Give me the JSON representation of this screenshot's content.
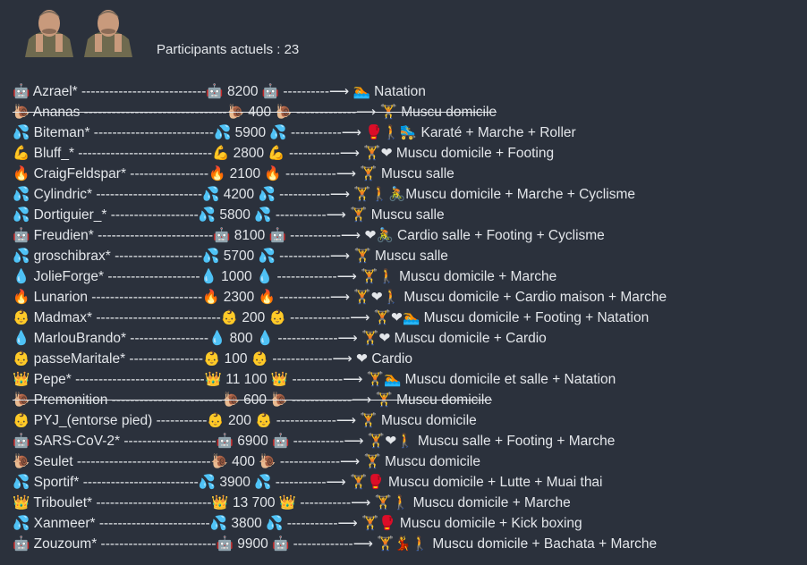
{
  "header": {
    "avatar_count": 2,
    "participants_label": "Participants actuels : 23"
  },
  "rows": [
    {
      "text": "🤖 Azrael* ---------------------------🤖 8200 🤖 ----------⟶ 🏊 Natation",
      "struck": false
    },
    {
      "text": "🐌 Ananas -------------------------------🐌 400 🐌 -------------⟶ 🏋 Muscu domicile",
      "struck": true
    },
    {
      "text": "💦 Biteman* --------------------------💦 5900 💦 -----------⟶ 🥊🚶🛼 Karaté + Marche + Roller",
      "struck": false
    },
    {
      "text": "💪 Bluff_* -----------------------------💪 2800 💪 -----------⟶ 🏋❤ Muscu domicile + Footing",
      "struck": false
    },
    {
      "text": "🔥 CraigFeldspar* -----------------🔥 2100 🔥 -----------⟶ 🏋 Muscu salle",
      "struck": false
    },
    {
      "text": "💦 Cylindric* -----------------------💦 4200 💦 -----------⟶ 🏋🚶🚴Muscu domicile + Marche + Cyclisme",
      "struck": false
    },
    {
      "text": "💦 Dortiguier_* -------------------💦 5800 💦 -----------⟶ 🏋 Muscu salle",
      "struck": false
    },
    {
      "text": "🤖 Freudien* -------------------------🤖 8100 🤖 -----------⟶ ❤🚴 Cardio salle + Footing + Cyclisme",
      "struck": false
    },
    {
      "text": "💦 groschibrax* -------------------💦 5700 💦 -----------⟶ 🏋 Muscu salle",
      "struck": false
    },
    {
      "text": "💧 JolieForge* --------------------💧 1000 💧 -------------⟶ 🏋🚶 Muscu domicile + Marche",
      "struck": false
    },
    {
      "text": "🔥 Lunarion ------------------------🔥 2300 🔥 -----------⟶ 🏋❤🚶 Muscu domicile + Cardio maison + Marche",
      "struck": false
    },
    {
      "text": "👶 Madmax* ---------------------------👶 200 👶 -------------⟶ 🏋❤🏊 Muscu domicile + Footing + Natation",
      "struck": false
    },
    {
      "text": "💧 MarlouBrando* -----------------💧 800 💧 -------------⟶ 🏋❤ Muscu domicile + Cardio",
      "struck": false
    },
    {
      "text": "👶 passeMaritale* ----------------👶 100 👶 -------------⟶ ❤ Cardio",
      "struck": false
    },
    {
      "text": "👑 Pepe* ----------------------------👑 11 100 👑 -----------⟶ 🏋🏊 Muscu domicile et salle + Natation",
      "struck": false
    },
    {
      "text": "🐌 Premonition ------------------------🐌 600 🐌 -------------⟶ 🏋 Muscu domicile",
      "struck": true
    },
    {
      "text": "👶 PYJ_(entorse pied) -----------👶 200 👶 -------------⟶ 🏋 Muscu domicile",
      "struck": false
    },
    {
      "text": "🤖 SARS-CoV-2* --------------------🤖 6900 🤖 -----------⟶ 🏋❤🚶 Muscu salle + Footing + Marche",
      "struck": false
    },
    {
      "text": "🐌 Seulet -----------------------------🐌 400 🐌 -------------⟶ 🏋 Muscu domicile",
      "struck": false
    },
    {
      "text": "💦 Sportif* -------------------------💦 3900 💦 -----------⟶ 🏋🥊 Muscu domicile + Lutte + Muai thai",
      "struck": false
    },
    {
      "text": "👑 Triboulet* -------------------------👑 13 700 👑 -----------⟶ 🏋🚶 Muscu domicile + Marche",
      "struck": false
    },
    {
      "text": "💦 Xanmeer* ------------------------💦 3800 💦 -----------⟶ 🏋🥊 Muscu domicile + Kick boxing",
      "struck": false
    },
    {
      "text": "🤖 Zouzoum* -------------------------🤖 9900 🤖 -------------⟶ 🏋💃🚶 Muscu domicile + Bachata + Marche",
      "struck": false
    }
  ]
}
